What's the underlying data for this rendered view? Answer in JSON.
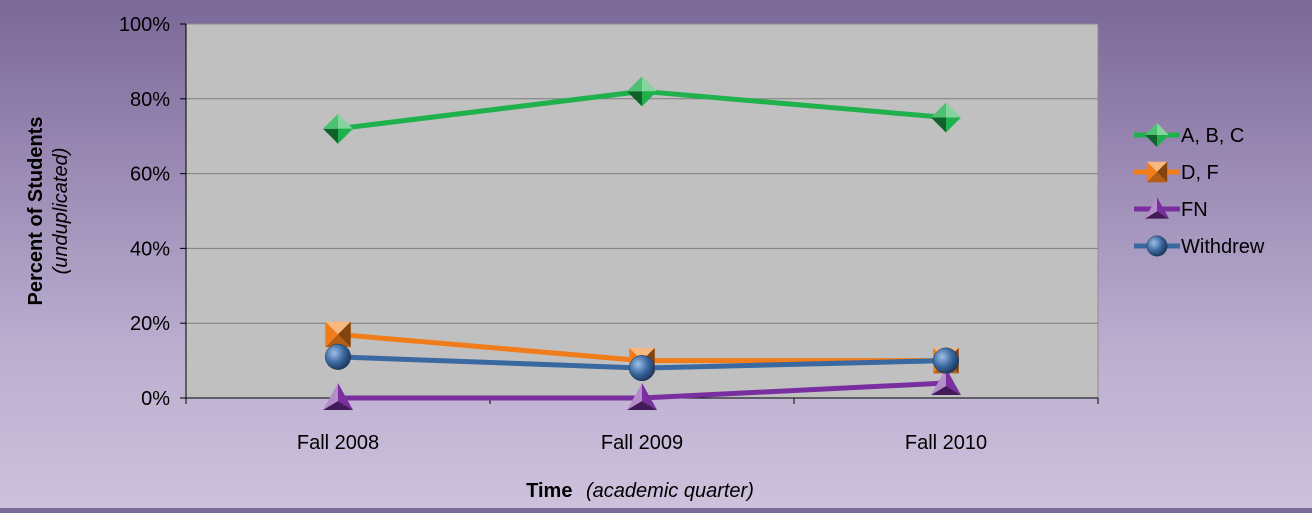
{
  "chart_data": {
    "type": "line",
    "categories": [
      "Fall 2008",
      "Fall 2009",
      "Fall 2010"
    ],
    "series": [
      {
        "name": "A, B, C",
        "values": [
          72,
          82,
          75
        ],
        "color": "#1fb14c",
        "marker": "diamond"
      },
      {
        "name": "D, F",
        "values": [
          17,
          10,
          10
        ],
        "color": "#f07c1a",
        "marker": "square"
      },
      {
        "name": "FN",
        "values": [
          0,
          0,
          4
        ],
        "color": "#7a2fa0",
        "marker": "triangle"
      },
      {
        "name": "Withdrew",
        "values": [
          11,
          8,
          10
        ],
        "color": "#3a68a0",
        "marker": "circle"
      }
    ],
    "ylim": [
      0,
      100
    ],
    "yticks": [
      "0%",
      "20%",
      "40%",
      "60%",
      "80%",
      "100%"
    ],
    "ylabel": {
      "main": "Percent of Students",
      "sub": "(unduplicated)"
    },
    "xlabel": {
      "main": "Time",
      "sub": "(academic quarter)"
    },
    "grid": true,
    "legend": "right",
    "plot_background": "#c0c0c0"
  }
}
